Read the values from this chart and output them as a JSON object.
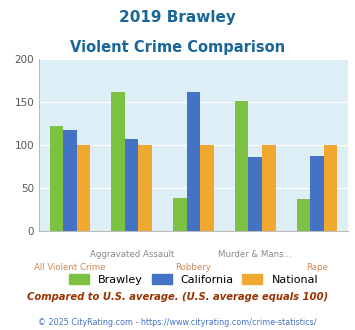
{
  "title_line1": "2019 Brawley",
  "title_line2": "Violent Crime Comparison",
  "x_labels_top": [
    "",
    "Aggravated Assault",
    "",
    "Murder & Mans...",
    ""
  ],
  "x_labels_bottom": [
    "All Violent Crime",
    "",
    "Robbery",
    "",
    "Rape"
  ],
  "brawley": [
    122,
    162,
    38,
    152,
    37
  ],
  "california": [
    118,
    107,
    162,
    86,
    87
  ],
  "national": [
    100,
    100,
    100,
    100,
    100
  ],
  "bar_colors": {
    "brawley": "#7dc142",
    "california": "#4472c4",
    "national": "#f0a830"
  },
  "ylim": [
    0,
    200
  ],
  "yticks": [
    0,
    50,
    100,
    150,
    200
  ],
  "legend_labels": [
    "Brawley",
    "California",
    "National"
  ],
  "footnote1": "Compared to U.S. average. (U.S. average equals 100)",
  "footnote2": "© 2025 CityRating.com - https://www.cityrating.com/crime-statistics/",
  "bg_color": "#ddeef6",
  "title_color": "#1a6699",
  "footnote1_color": "#993300",
  "footnote2_color": "#4472c4"
}
